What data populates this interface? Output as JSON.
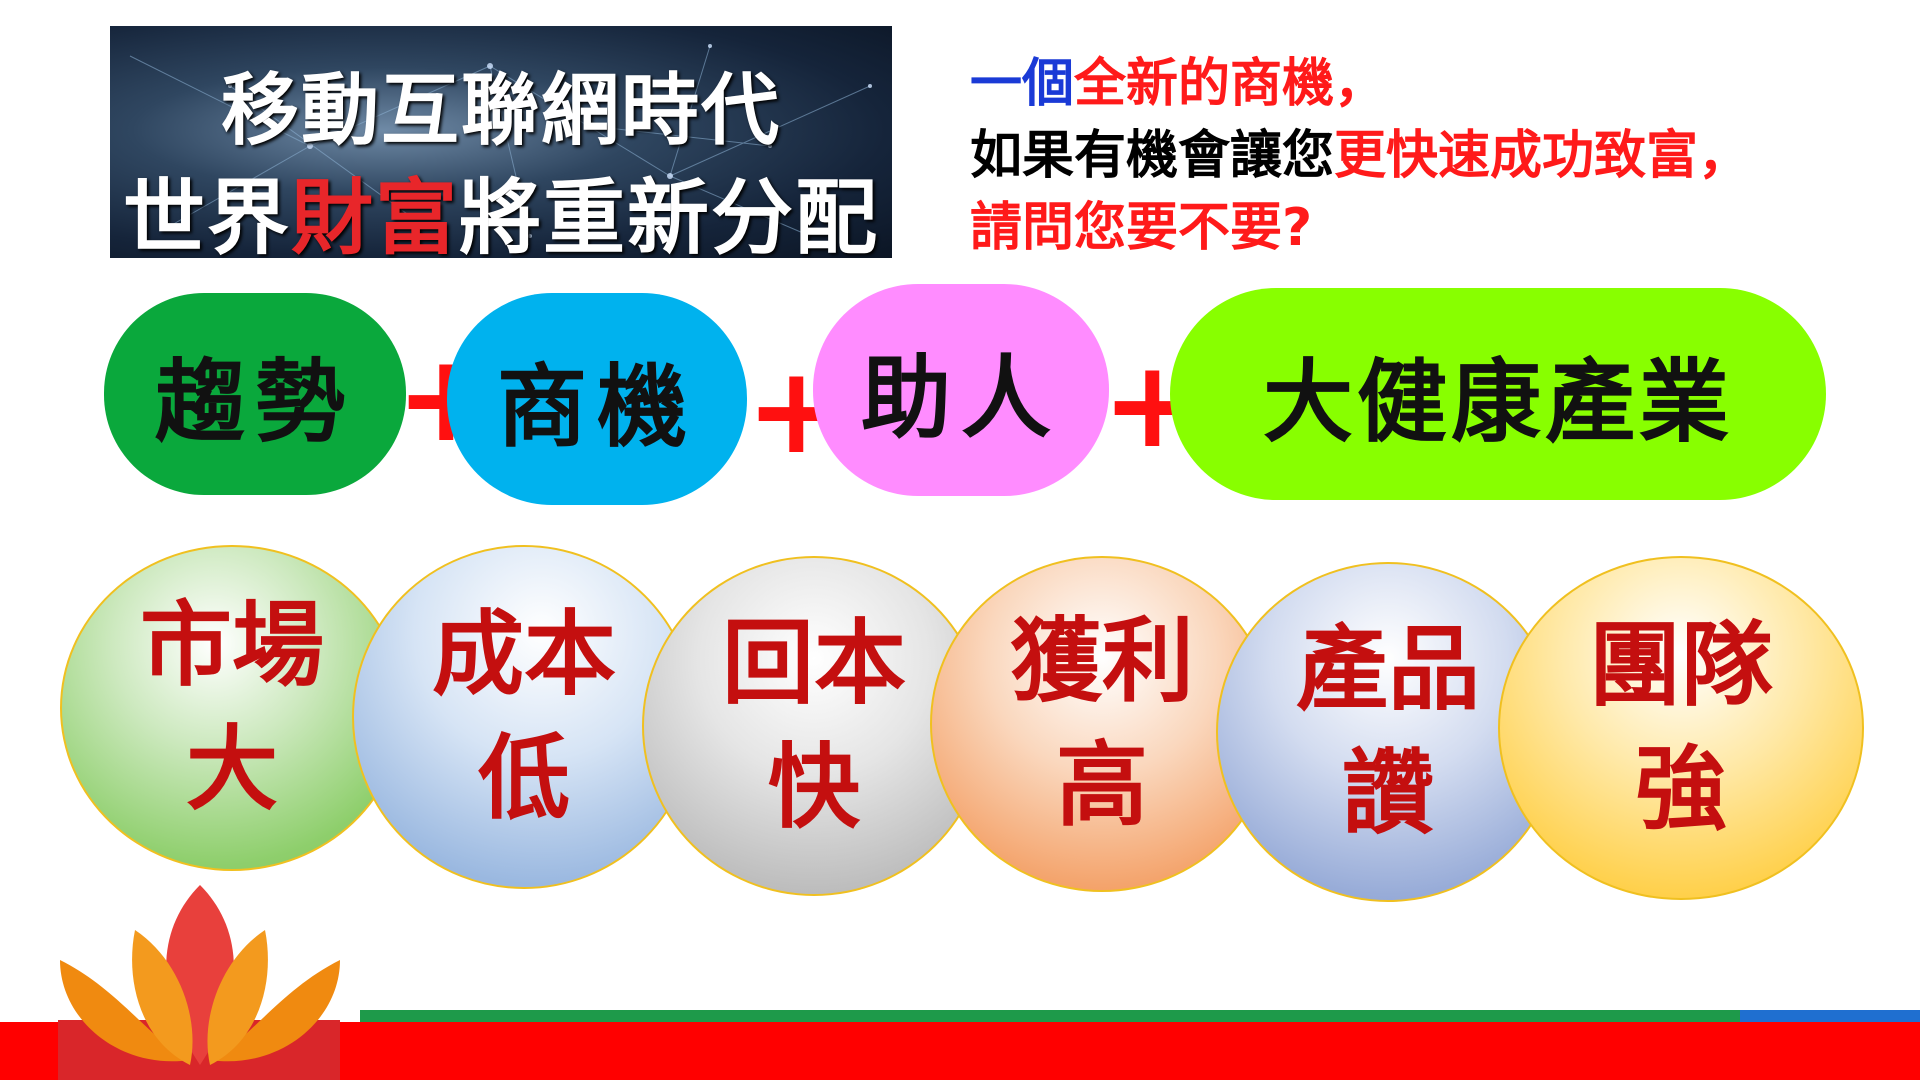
{
  "banner": {
    "line1": "移動互聯網時代",
    "line2_pre": "世界",
    "line2_red": "財富",
    "line2_post": "將重新分配"
  },
  "headline": {
    "l1_blue": "一個",
    "l1_red": "全新的商機，",
    "l2_black": "如果有機會讓您",
    "l2_red": "更快速成功致富，",
    "l3_red": "請問您要不要?"
  },
  "pills": [
    {
      "label": "趨勢",
      "color": "#0aa83c"
    },
    {
      "label": "商機",
      "color": "#00b2ee"
    },
    {
      "label": "助人",
      "color": "#ff8cff"
    },
    {
      "label": "大健康產業",
      "color": "#88ff00"
    }
  ],
  "plus_sign": "+",
  "bubbles": [
    {
      "top": "市場",
      "bottom": "大"
    },
    {
      "top": "成本",
      "bottom": "低"
    },
    {
      "top": "回本",
      "bottom": "快"
    },
    {
      "top": "獲利",
      "bottom": "高"
    },
    {
      "top": "產品",
      "bottom": "讚"
    },
    {
      "top": "團隊",
      "bottom": "強"
    }
  ],
  "colors": {
    "accent_red": "#ff0000",
    "bubble_text": "#c40f0f",
    "footer_green": "#1e9a4a",
    "footer_blue": "#1f6fd0"
  }
}
